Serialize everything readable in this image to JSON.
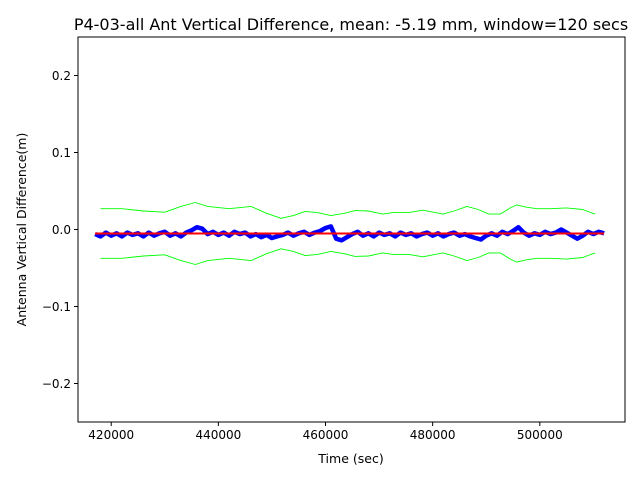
{
  "chart_data": {
    "type": "line",
    "title": "P4-03-all Ant Vertical Difference, mean: -5.19 mm, window=120 secs",
    "xlabel": "Time (sec)",
    "ylabel": "Antenna Vertical Difference(m)",
    "xlim": [
      413800,
      515900
    ],
    "ylim": [
      -0.25,
      0.25
    ],
    "xticks": [
      420000,
      440000,
      460000,
      480000,
      500000
    ],
    "xtick_labels": [
      "420000",
      "440000",
      "460000",
      "480000",
      "500000"
    ],
    "yticks": [
      -0.2,
      -0.1,
      0.0,
      0.1,
      0.2
    ],
    "ytick_labels": [
      "−0.2",
      "−0.1",
      "0.0",
      "0.1",
      "0.2"
    ],
    "grid": false,
    "colors": {
      "difference": "#0000ff",
      "mean": "#ff0000",
      "envelope": "#00ff00"
    },
    "series": [
      {
        "role": "difference",
        "x": [
          417000,
          418000,
          419000,
          420000,
          421000,
          422000,
          423000,
          424000,
          425000,
          426000,
          427000,
          428000,
          429000,
          430000,
          431000,
          432000,
          433000,
          434000,
          435000,
          436000,
          437000,
          438000,
          439000,
          440000,
          441000,
          442000,
          443000,
          444000,
          445000,
          446000,
          447000,
          448000,
          449000,
          450000,
          451000,
          452000,
          453000,
          454000,
          455000,
          456000,
          457000,
          458000,
          459000,
          460000,
          461000,
          462000,
          463000,
          464000,
          465000,
          466000,
          467000,
          468000,
          469000,
          470000,
          471000,
          472000,
          473000,
          474000,
          475000,
          476000,
          477000,
          478000,
          479000,
          480000,
          481000,
          482000,
          483000,
          484000,
          485000,
          486000,
          487000,
          488000,
          489000,
          490000,
          491000,
          492000,
          493000,
          494000,
          495000,
          496000,
          497000,
          498000,
          499000,
          500000,
          501000,
          502000,
          503000,
          504000,
          505000,
          506000,
          507000,
          508000,
          509000,
          510000,
          511000,
          512000
        ],
        "y": [
          -0.006,
          -0.009,
          -0.004,
          -0.008,
          -0.005,
          -0.009,
          -0.004,
          -0.007,
          -0.005,
          -0.009,
          -0.004,
          -0.008,
          -0.005,
          -0.003,
          -0.008,
          -0.005,
          -0.009,
          -0.004,
          -0.001,
          0.003,
          0.001,
          -0.006,
          -0.003,
          -0.007,
          -0.004,
          -0.008,
          -0.003,
          -0.006,
          -0.004,
          -0.009,
          -0.006,
          -0.01,
          -0.007,
          -0.011,
          -0.009,
          -0.007,
          -0.004,
          -0.008,
          -0.005,
          -0.003,
          -0.007,
          -0.004,
          -0.002,
          0.002,
          0.004,
          -0.012,
          -0.014,
          -0.01,
          -0.006,
          -0.003,
          -0.008,
          -0.005,
          -0.009,
          -0.004,
          -0.007,
          -0.005,
          -0.009,
          -0.004,
          -0.007,
          -0.005,
          -0.009,
          -0.006,
          -0.004,
          -0.008,
          -0.005,
          -0.009,
          -0.006,
          -0.004,
          -0.008,
          -0.006,
          -0.009,
          -0.011,
          -0.013,
          -0.008,
          -0.005,
          -0.008,
          -0.003,
          -0.006,
          -0.002,
          0.003,
          -0.004,
          -0.008,
          -0.005,
          -0.007,
          -0.003,
          -0.006,
          -0.004,
          0.0,
          -0.004,
          -0.008,
          -0.012,
          -0.008,
          -0.003,
          -0.006,
          -0.003,
          -0.005
        ]
      },
      {
        "role": "mean",
        "x": [
          417000,
          512000
        ],
        "y": [
          -0.00519,
          -0.00519
        ]
      },
      {
        "role": "envelope-upper",
        "x": [
          418000,
          422000,
          426000,
          430000,
          433000,
          435700,
          438000,
          442000,
          446100,
          449000,
          451700,
          454000,
          456200,
          458500,
          461000,
          463500,
          465500,
          468000,
          470700,
          472600,
          475500,
          478200,
          481900,
          484000,
          486400,
          488500,
          490500,
          492600,
          494500,
          495700,
          497500,
          499500,
          502000,
          505000,
          508000,
          510300
        ],
        "y": [
          0.027,
          0.027,
          0.024,
          0.0225,
          0.03,
          0.035,
          0.03,
          0.027,
          0.03,
          0.021,
          0.0146,
          0.018,
          0.0235,
          0.022,
          0.018,
          0.021,
          0.0245,
          0.024,
          0.02,
          0.022,
          0.022,
          0.025,
          0.02,
          0.024,
          0.03,
          0.026,
          0.02,
          0.02,
          0.028,
          0.032,
          0.029,
          0.027,
          0.027,
          0.028,
          0.026,
          0.02
        ]
      },
      {
        "role": "envelope-lower",
        "x": [
          418000,
          422000,
          426000,
          430000,
          433000,
          435700,
          438000,
          442000,
          446100,
          449000,
          451700,
          454000,
          456200,
          458500,
          461000,
          463500,
          465500,
          468000,
          470700,
          472600,
          475500,
          478200,
          481900,
          484000,
          486400,
          488500,
          490500,
          492600,
          494500,
          495700,
          497500,
          499500,
          502000,
          505000,
          508000,
          510300
        ],
        "y": [
          -0.0374,
          -0.0374,
          -0.0344,
          -0.0329,
          -0.0404,
          -0.0454,
          -0.0404,
          -0.0374,
          -0.0404,
          -0.0314,
          -0.025,
          -0.0284,
          -0.0339,
          -0.0324,
          -0.0284,
          -0.0314,
          -0.0349,
          -0.0344,
          -0.0304,
          -0.0324,
          -0.0324,
          -0.0354,
          -0.0304,
          -0.0344,
          -0.0404,
          -0.0364,
          -0.0304,
          -0.0304,
          -0.0384,
          -0.0424,
          -0.0394,
          -0.0374,
          -0.0374,
          -0.0384,
          -0.0364,
          -0.0304
        ]
      }
    ]
  }
}
